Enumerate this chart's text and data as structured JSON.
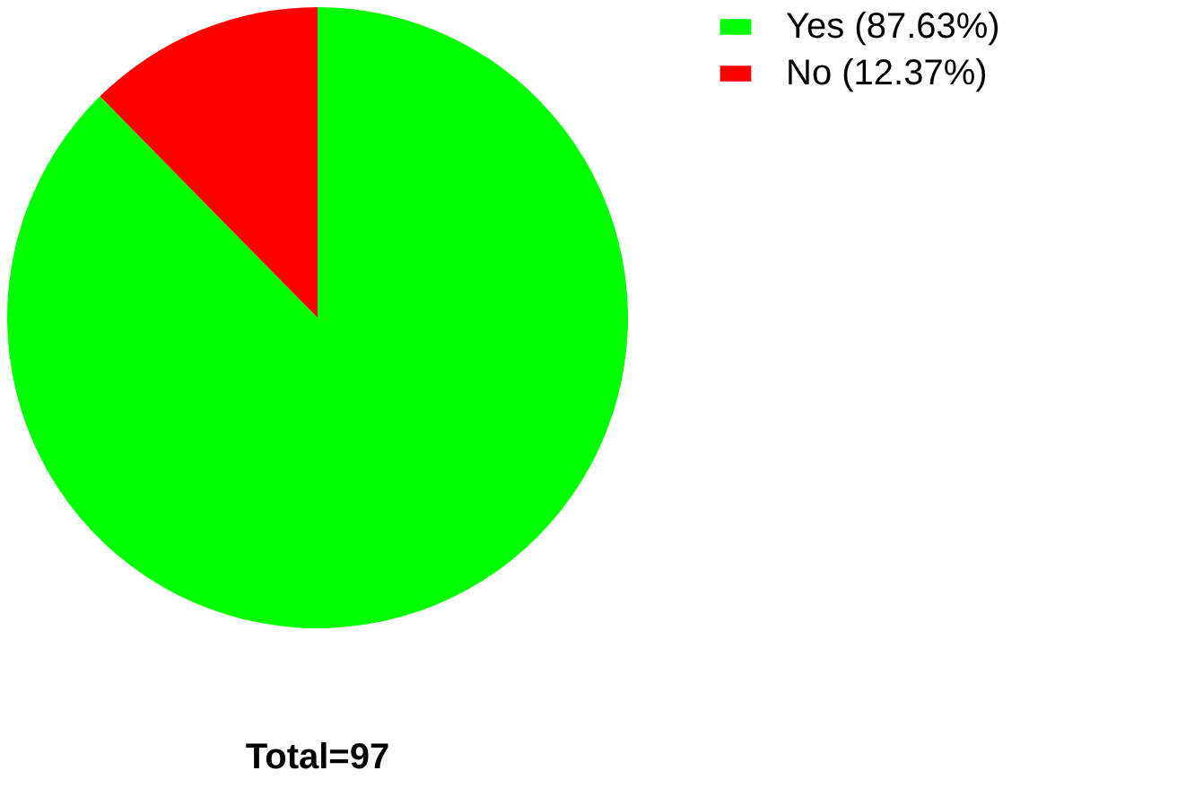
{
  "chart_data": {
    "type": "pie",
    "categories": [
      "Yes (87.63%)",
      "No (12.37%)"
    ],
    "values": [
      87.63,
      12.37
    ],
    "colors": [
      "#00ff00",
      "#ff0000"
    ],
    "legend": "top right",
    "annotations": [
      "Total=97"
    ]
  }
}
